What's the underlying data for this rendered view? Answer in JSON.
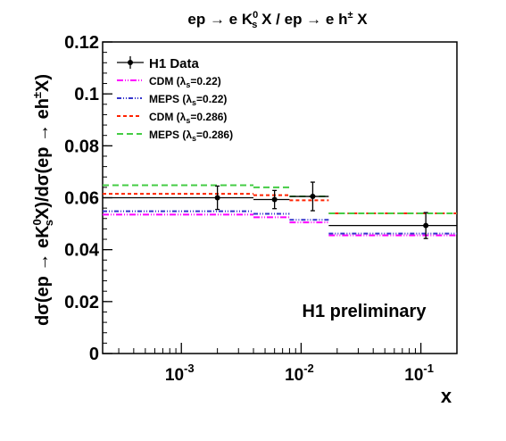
{
  "chart_data": {
    "type": "step",
    "title": {
      "p1": "ep → e K",
      "sup": "0",
      "sub": "s",
      "p2": " X / ep → e h",
      "sup2": "±",
      "p3": " X"
    },
    "xlabel": "x",
    "ylabel": {
      "p1": "dσ(ep → eK",
      "sup": "0",
      "sub": "s",
      "p2": "X)/dσ(ep → eh",
      "sup2": "±",
      "p3": "X)"
    },
    "x_scale": "log",
    "xlim": [
      0.00022,
      0.2
    ],
    "ylim": [
      0,
      0.12
    ],
    "y_ticks": [
      0,
      0.02,
      0.04,
      0.06,
      0.08,
      0.1,
      0.12
    ],
    "y_tick_labels": [
      "0",
      "0.02",
      "0.04",
      "0.06",
      "0.08",
      "0.1",
      "0.12"
    ],
    "x_ticks": [
      {
        "value": 0.001,
        "base": "10",
        "exp": "-3"
      },
      {
        "value": 0.01,
        "base": "10",
        "exp": "-2"
      },
      {
        "value": 0.1,
        "base": "10",
        "exp": "-1"
      }
    ],
    "annotation": "H1 preliminary",
    "legend_position": "top-left",
    "data": {
      "name": "H1 Data",
      "color": "#000000",
      "points": [
        {
          "x": 0.002,
          "y": 0.06,
          "xlo": 0.00022,
          "xhi": 0.004,
          "err": 0.0045
        },
        {
          "x": 0.006,
          "y": 0.0593,
          "xlo": 0.004,
          "xhi": 0.008,
          "err": 0.0035
        },
        {
          "x": 0.0125,
          "y": 0.0605,
          "xlo": 0.008,
          "xhi": 0.017,
          "err": 0.0055
        },
        {
          "x": 0.11,
          "y": 0.0493,
          "xlo": 0.017,
          "xhi": 0.2,
          "err": 0.005
        }
      ]
    },
    "edges": [
      0.00022,
      0.004,
      0.008,
      0.017,
      0.2
    ],
    "series": [
      {
        "name_pre": "CDM (",
        "name_lambda": "λ",
        "name_sub": "s",
        "name_post": "=0.22)",
        "color": "#ff00ff",
        "dash": "7,2,1,2,1,2",
        "values": [
          0.0535,
          0.0525,
          0.0505,
          0.0455
        ]
      },
      {
        "name_pre": "MEPS (",
        "name_lambda": "λ",
        "name_sub": "s",
        "name_post": "=0.22)",
        "color": "#3535cc",
        "dash": "5,2,1,2,1,2",
        "values": [
          0.0548,
          0.0538,
          0.0515,
          0.0462
        ]
      },
      {
        "name_pre": "CDM (",
        "name_lambda": "λ",
        "name_sub": "s",
        "name_post": "=0.286)",
        "color": "#ff2200",
        "dash": "4,3",
        "values": [
          0.0615,
          0.061,
          0.059,
          0.054
        ]
      },
      {
        "name_pre": "MEPS (",
        "name_lambda": "λ",
        "name_sub": "s",
        "name_post": "=0.286)",
        "color": "#44cc44",
        "dash": "7,4",
        "values": [
          0.0648,
          0.064,
          0.0605,
          0.054
        ]
      }
    ]
  }
}
